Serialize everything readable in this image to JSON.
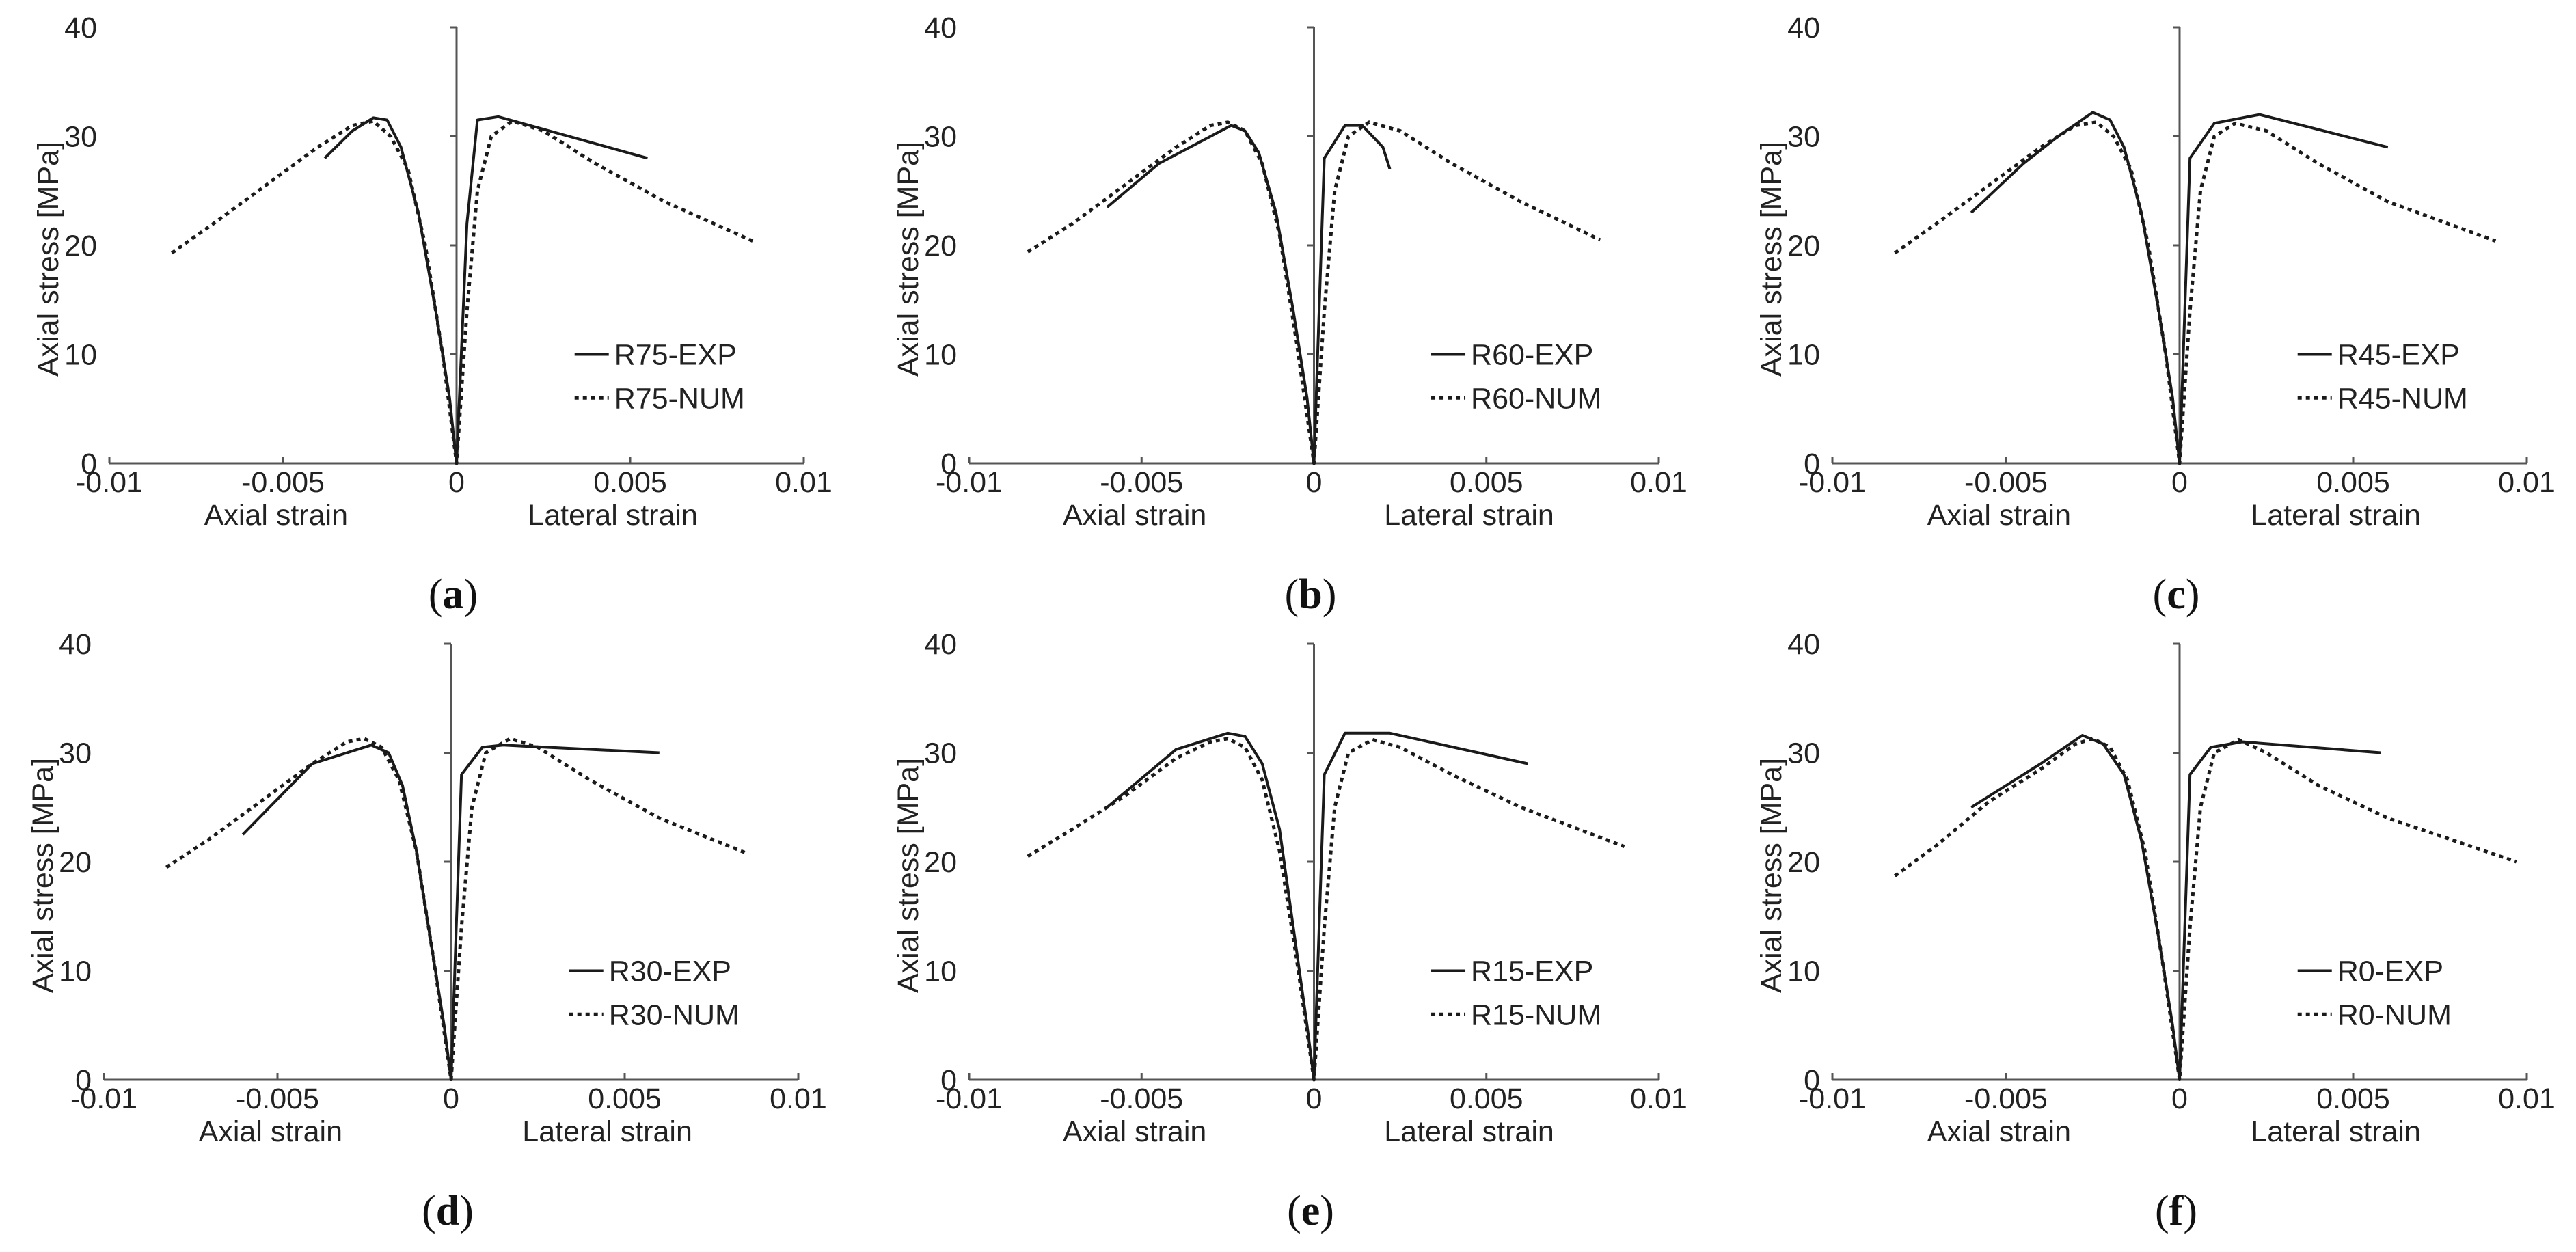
{
  "colors": {
    "exp": "#1a1a1a",
    "num": "#1a1a1a",
    "axis": "#555555"
  },
  "chart_data": [
    {
      "type": "line",
      "caption_letter": "a",
      "caption_open": "(",
      "caption_close": ")",
      "ylabel": "Axial stress [MPa]",
      "xlabel_left": "Axial strain",
      "xlabel_right": "Lateral strain",
      "xlim": [
        -0.01,
        0.01
      ],
      "ylim": [
        0,
        40
      ],
      "xticks": [
        -0.01,
        -0.005,
        0,
        0.005,
        0.01
      ],
      "xtick_labels": [
        "-0.01",
        "-0.005",
        "0",
        "0.005",
        "0.01"
      ],
      "yticks": [
        0,
        10,
        20,
        30,
        40
      ],
      "ytick_labels": [
        "0",
        "10",
        "20",
        "30",
        "40"
      ],
      "legend_position": "lower-right",
      "series": [
        {
          "name": "R75-EXP",
          "style": "solid",
          "x": [
            -0.0038,
            -0.003,
            -0.0024,
            -0.002,
            -0.0016,
            -0.0011,
            -0.0006,
            -0.0002,
            0,
            0.0003,
            0.0006,
            0.0012,
            0.0055
          ],
          "y": [
            28.0,
            30.5,
            31.7,
            31.5,
            29.0,
            23.0,
            14.0,
            6.0,
            0,
            22.0,
            31.5,
            31.8,
            28.0
          ]
        },
        {
          "name": "R75-NUM",
          "style": "dotted",
          "x": [
            -0.0082,
            -0.007,
            -0.0055,
            -0.004,
            -0.003,
            -0.0024,
            -0.0019,
            -0.0014,
            -0.0009,
            -0.0004,
            0,
            0.0003,
            0.0006,
            0.001,
            0.0016,
            0.0025,
            0.004,
            0.006,
            0.0086
          ],
          "y": [
            19.3,
            22.0,
            25.5,
            29.0,
            31.0,
            31.4,
            30.0,
            27.0,
            20.0,
            10.0,
            0,
            14.0,
            25.0,
            30.0,
            31.4,
            30.5,
            27.5,
            24.0,
            20.3
          ]
        }
      ]
    },
    {
      "type": "line",
      "caption_letter": "b",
      "caption_open": "(",
      "caption_close": ")",
      "ylabel": "Axial stress [MPa]",
      "xlabel_left": "Axial strain",
      "xlabel_right": "Lateral strain",
      "xlim": [
        -0.01,
        0.01
      ],
      "ylim": [
        0,
        40
      ],
      "xticks": [
        -0.01,
        -0.005,
        0,
        0.005,
        0.01
      ],
      "xtick_labels": [
        "-0.01",
        "-0.005",
        "0",
        "0.005",
        "0.01"
      ],
      "yticks": [
        0,
        10,
        20,
        30,
        40
      ],
      "ytick_labels": [
        "0",
        "10",
        "20",
        "30",
        "40"
      ],
      "legend_position": "lower-right",
      "series": [
        {
          "name": "R60-EXP",
          "style": "solid",
          "x": [
            -0.006,
            -0.0045,
            -0.003,
            -0.0024,
            -0.002,
            -0.0016,
            -0.0011,
            -0.0006,
            -0.0002,
            0,
            0.0003,
            0.0009,
            0.0014,
            0.002,
            0.0022
          ],
          "y": [
            23.5,
            27.5,
            30.0,
            31.0,
            30.5,
            28.5,
            23.0,
            14.0,
            6.0,
            0,
            28.0,
            31.0,
            31.0,
            29.0,
            27.0
          ]
        },
        {
          "name": "R60-NUM",
          "style": "dotted",
          "x": [
            -0.0083,
            -0.007,
            -0.0055,
            -0.004,
            -0.003,
            -0.0025,
            -0.002,
            -0.0015,
            -0.001,
            -0.0005,
            0,
            0.0003,
            0.0006,
            0.001,
            0.0016,
            0.0025,
            0.004,
            0.006,
            0.0083
          ],
          "y": [
            19.4,
            22.0,
            25.5,
            29.0,
            31.0,
            31.3,
            30.5,
            27.5,
            21.0,
            11.0,
            0,
            14.0,
            25.0,
            30.0,
            31.3,
            30.5,
            27.5,
            24.0,
            20.5
          ]
        }
      ]
    },
    {
      "type": "line",
      "caption_letter": "c",
      "caption_open": "(",
      "caption_close": ")",
      "ylabel": "Axial stress [MPa]",
      "xlabel_left": "Axial strain",
      "xlabel_right": "Lateral strain",
      "xlim": [
        -0.01,
        0.01
      ],
      "ylim": [
        0,
        40
      ],
      "xticks": [
        -0.01,
        -0.005,
        0,
        0.005,
        0.01
      ],
      "xtick_labels": [
        "-0.01",
        "-0.005",
        "0",
        "0.005",
        "0.01"
      ],
      "yticks": [
        0,
        10,
        20,
        30,
        40
      ],
      "ytick_labels": [
        "0",
        "10",
        "20",
        "30",
        "40"
      ],
      "legend_position": "lower-right",
      "series": [
        {
          "name": "R45-EXP",
          "style": "solid",
          "x": [
            -0.006,
            -0.0045,
            -0.0035,
            -0.0025,
            -0.002,
            -0.0016,
            -0.0011,
            -0.0006,
            -0.0002,
            0,
            0.0003,
            0.001,
            0.0023,
            0.006
          ],
          "y": [
            23.0,
            27.5,
            30.0,
            32.2,
            31.5,
            29.0,
            23.0,
            14.0,
            6.0,
            0,
            28.0,
            31.2,
            32.0,
            29.0
          ]
        },
        {
          "name": "R45-NUM",
          "style": "dotted",
          "x": [
            -0.0082,
            -0.007,
            -0.0055,
            -0.004,
            -0.003,
            -0.0024,
            -0.0019,
            -0.0014,
            -0.0009,
            -0.0004,
            0,
            0.0003,
            0.0006,
            0.001,
            0.0016,
            0.0025,
            0.004,
            0.006,
            0.0091
          ],
          "y": [
            19.3,
            22.0,
            25.5,
            29.0,
            31.0,
            31.3,
            30.0,
            27.0,
            20.0,
            10.0,
            0,
            14.0,
            25.0,
            30.0,
            31.2,
            30.5,
            27.5,
            24.0,
            20.4
          ]
        }
      ]
    },
    {
      "type": "line",
      "caption_letter": "d",
      "caption_open": "(",
      "caption_close": ")",
      "ylabel": "Axial stress [MPa]",
      "xlabel_left": "Axial strain",
      "xlabel_right": "Lateral strain",
      "xlim": [
        -0.01,
        0.01
      ],
      "ylim": [
        0,
        40
      ],
      "xticks": [
        -0.01,
        -0.005,
        0,
        0.005,
        0.01
      ],
      "xtick_labels": [
        "-0.01",
        "-0.005",
        "0",
        "0.005",
        "0.01"
      ],
      "yticks": [
        0,
        10,
        20,
        30,
        40
      ],
      "ytick_labels": [
        "0",
        "10",
        "20",
        "30",
        "40"
      ],
      "legend_position": "lower-right",
      "series": [
        {
          "name": "R30-EXP",
          "style": "solid",
          "x": [
            -0.006,
            -0.004,
            -0.0023,
            -0.0018,
            -0.0014,
            -0.001,
            -0.0006,
            -0.0002,
            0,
            0.0003,
            0.0009,
            0.0015,
            0.006
          ],
          "y": [
            22.5,
            29.0,
            30.7,
            30.0,
            27.0,
            21.0,
            13.0,
            5.0,
            0,
            28.0,
            30.5,
            30.7,
            30.0
          ]
        },
        {
          "name": "R30-NUM",
          "style": "dotted",
          "x": [
            -0.0082,
            -0.007,
            -0.0055,
            -0.004,
            -0.003,
            -0.0025,
            -0.002,
            -0.0015,
            -0.001,
            -0.0005,
            0,
            0.0003,
            0.0006,
            0.001,
            0.0017,
            0.0025,
            0.004,
            0.006,
            0.0085
          ],
          "y": [
            19.5,
            22.0,
            25.5,
            29.0,
            31.0,
            31.3,
            30.5,
            27.5,
            21.0,
            11.0,
            0,
            14.0,
            25.0,
            30.0,
            31.3,
            30.5,
            27.5,
            24.0,
            20.8
          ]
        }
      ]
    },
    {
      "type": "line",
      "caption_letter": "e",
      "caption_open": "(",
      "caption_close": ")",
      "ylabel": "Axial stress [MPa]",
      "xlabel_left": "Axial strain",
      "xlabel_right": "Lateral strain",
      "xlim": [
        -0.01,
        0.01
      ],
      "ylim": [
        0,
        40
      ],
      "xticks": [
        -0.01,
        -0.005,
        0,
        0.005,
        0.01
      ],
      "xtick_labels": [
        "-0.01",
        "-0.005",
        "0",
        "0.005",
        "0.01"
      ],
      "yticks": [
        0,
        10,
        20,
        30,
        40
      ],
      "ytick_labels": [
        "0",
        "10",
        "20",
        "30",
        "40"
      ],
      "legend_position": "lower-right",
      "series": [
        {
          "name": "R15-EXP",
          "style": "solid",
          "x": [
            -0.006,
            -0.004,
            -0.0025,
            -0.002,
            -0.0015,
            -0.001,
            -0.0006,
            -0.0002,
            0,
            0.0003,
            0.0009,
            0.0022,
            0.0062
          ],
          "y": [
            25.0,
            30.3,
            31.8,
            31.5,
            29.0,
            23.0,
            14.0,
            5.0,
            0,
            28.0,
            31.8,
            31.8,
            29.0
          ]
        },
        {
          "name": "R15-NUM",
          "style": "dotted",
          "x": [
            -0.0083,
            -0.007,
            -0.0055,
            -0.004,
            -0.003,
            -0.0025,
            -0.002,
            -0.0015,
            -0.001,
            -0.0005,
            0,
            0.0003,
            0.0006,
            0.001,
            0.0017,
            0.0025,
            0.004,
            0.006,
            0.009
          ],
          "y": [
            20.5,
            23.0,
            26.0,
            29.5,
            31.0,
            31.3,
            30.5,
            27.5,
            21.0,
            11.0,
            0,
            14.0,
            25.0,
            30.0,
            31.2,
            30.5,
            28.0,
            25.0,
            21.4
          ]
        }
      ]
    },
    {
      "type": "line",
      "caption_letter": "f",
      "caption_open": "(",
      "caption_close": ")",
      "ylabel": "Axial stress [MPa]",
      "xlabel_left": "Axial strain",
      "xlabel_right": "Lateral strain",
      "xlim": [
        -0.01,
        0.01
      ],
      "ylim": [
        0,
        40
      ],
      "xticks": [
        -0.01,
        -0.005,
        0,
        0.005,
        0.01
      ],
      "xtick_labels": [
        "-0.01",
        "-0.005",
        "0",
        "0.005",
        "0.01"
      ],
      "yticks": [
        0,
        10,
        20,
        30,
        40
      ],
      "ytick_labels": [
        "0",
        "10",
        "20",
        "30",
        "40"
      ],
      "legend_position": "lower-right",
      "series": [
        {
          "name": "R0-EXP",
          "style": "solid",
          "x": [
            -0.006,
            -0.004,
            -0.0028,
            -0.0022,
            -0.0016,
            -0.0011,
            -0.0006,
            -0.0002,
            0,
            0.0003,
            0.0009,
            0.0018,
            0.0058
          ],
          "y": [
            25.0,
            29.0,
            31.6,
            30.8,
            28.0,
            22.0,
            13.0,
            5.0,
            0,
            28.0,
            30.5,
            31.0,
            30.0
          ]
        },
        {
          "name": "R0-NUM",
          "style": "dotted",
          "x": [
            -0.0082,
            -0.007,
            -0.0055,
            -0.004,
            -0.003,
            -0.0025,
            -0.002,
            -0.0015,
            -0.001,
            -0.0005,
            0,
            0.0003,
            0.0006,
            0.001,
            0.0017,
            0.0025,
            0.004,
            0.006,
            0.0097
          ],
          "y": [
            18.7,
            21.5,
            25.5,
            28.5,
            30.8,
            31.3,
            30.5,
            27.5,
            21.0,
            11.0,
            0,
            14.0,
            25.0,
            30.0,
            31.2,
            30.0,
            27.0,
            24.0,
            20.0
          ]
        }
      ]
    }
  ]
}
